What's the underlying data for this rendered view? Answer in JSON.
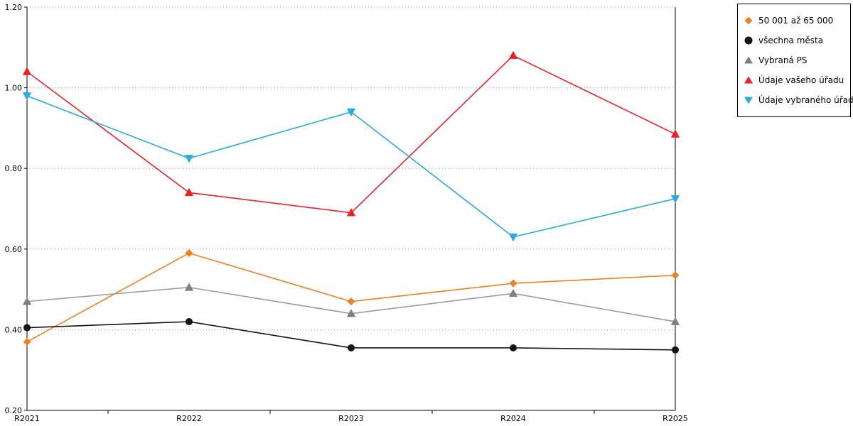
{
  "chart_data": {
    "type": "line",
    "title": "",
    "xlabel": "",
    "ylabel": "",
    "categories": [
      "R2021",
      "R2022",
      "R2023",
      "R2024",
      "R2025"
    ],
    "ylim": [
      0.2,
      1.2
    ],
    "ytick_values": [
      0.2,
      0.4,
      0.6,
      0.8,
      1.0,
      1.2
    ],
    "ytick_labels": [
      "0.20",
      "0.40",
      "0.60",
      "0.80",
      "1.00",
      "1.20"
    ],
    "grid": "dotted-horizontal",
    "legend_position": "top-right",
    "series": [
      {
        "name": "50 001 až 65 000",
        "color": "#ED8022",
        "marker": "diamond",
        "values": [
          0.37,
          0.59,
          0.47,
          0.515,
          0.535
        ]
      },
      {
        "name": "všechna města",
        "color": "#141414",
        "marker": "circle",
        "values": [
          0.405,
          0.42,
          0.355,
          0.355,
          0.35
        ]
      },
      {
        "name": "Vybraná PS",
        "color": "#9B9B9B",
        "marker": "triangle-up",
        "marker_color": "#808080",
        "values": [
          0.47,
          0.505,
          0.44,
          0.49,
          0.42
        ]
      },
      {
        "name": "Údaje vašeho úřadu",
        "color": "#EE2024",
        "marker": "triangle-up",
        "values": [
          1.04,
          0.74,
          0.69,
          1.08,
          0.885
        ]
      },
      {
        "name": "Údaje vybraného úřadu",
        "color": "#29ABE2",
        "marker": "triangle-down",
        "values": [
          0.98,
          0.825,
          0.94,
          0.63,
          0.725
        ]
      }
    ],
    "axis_color": "#000000",
    "grid_color": "#999999",
    "label_color": "#000000"
  }
}
